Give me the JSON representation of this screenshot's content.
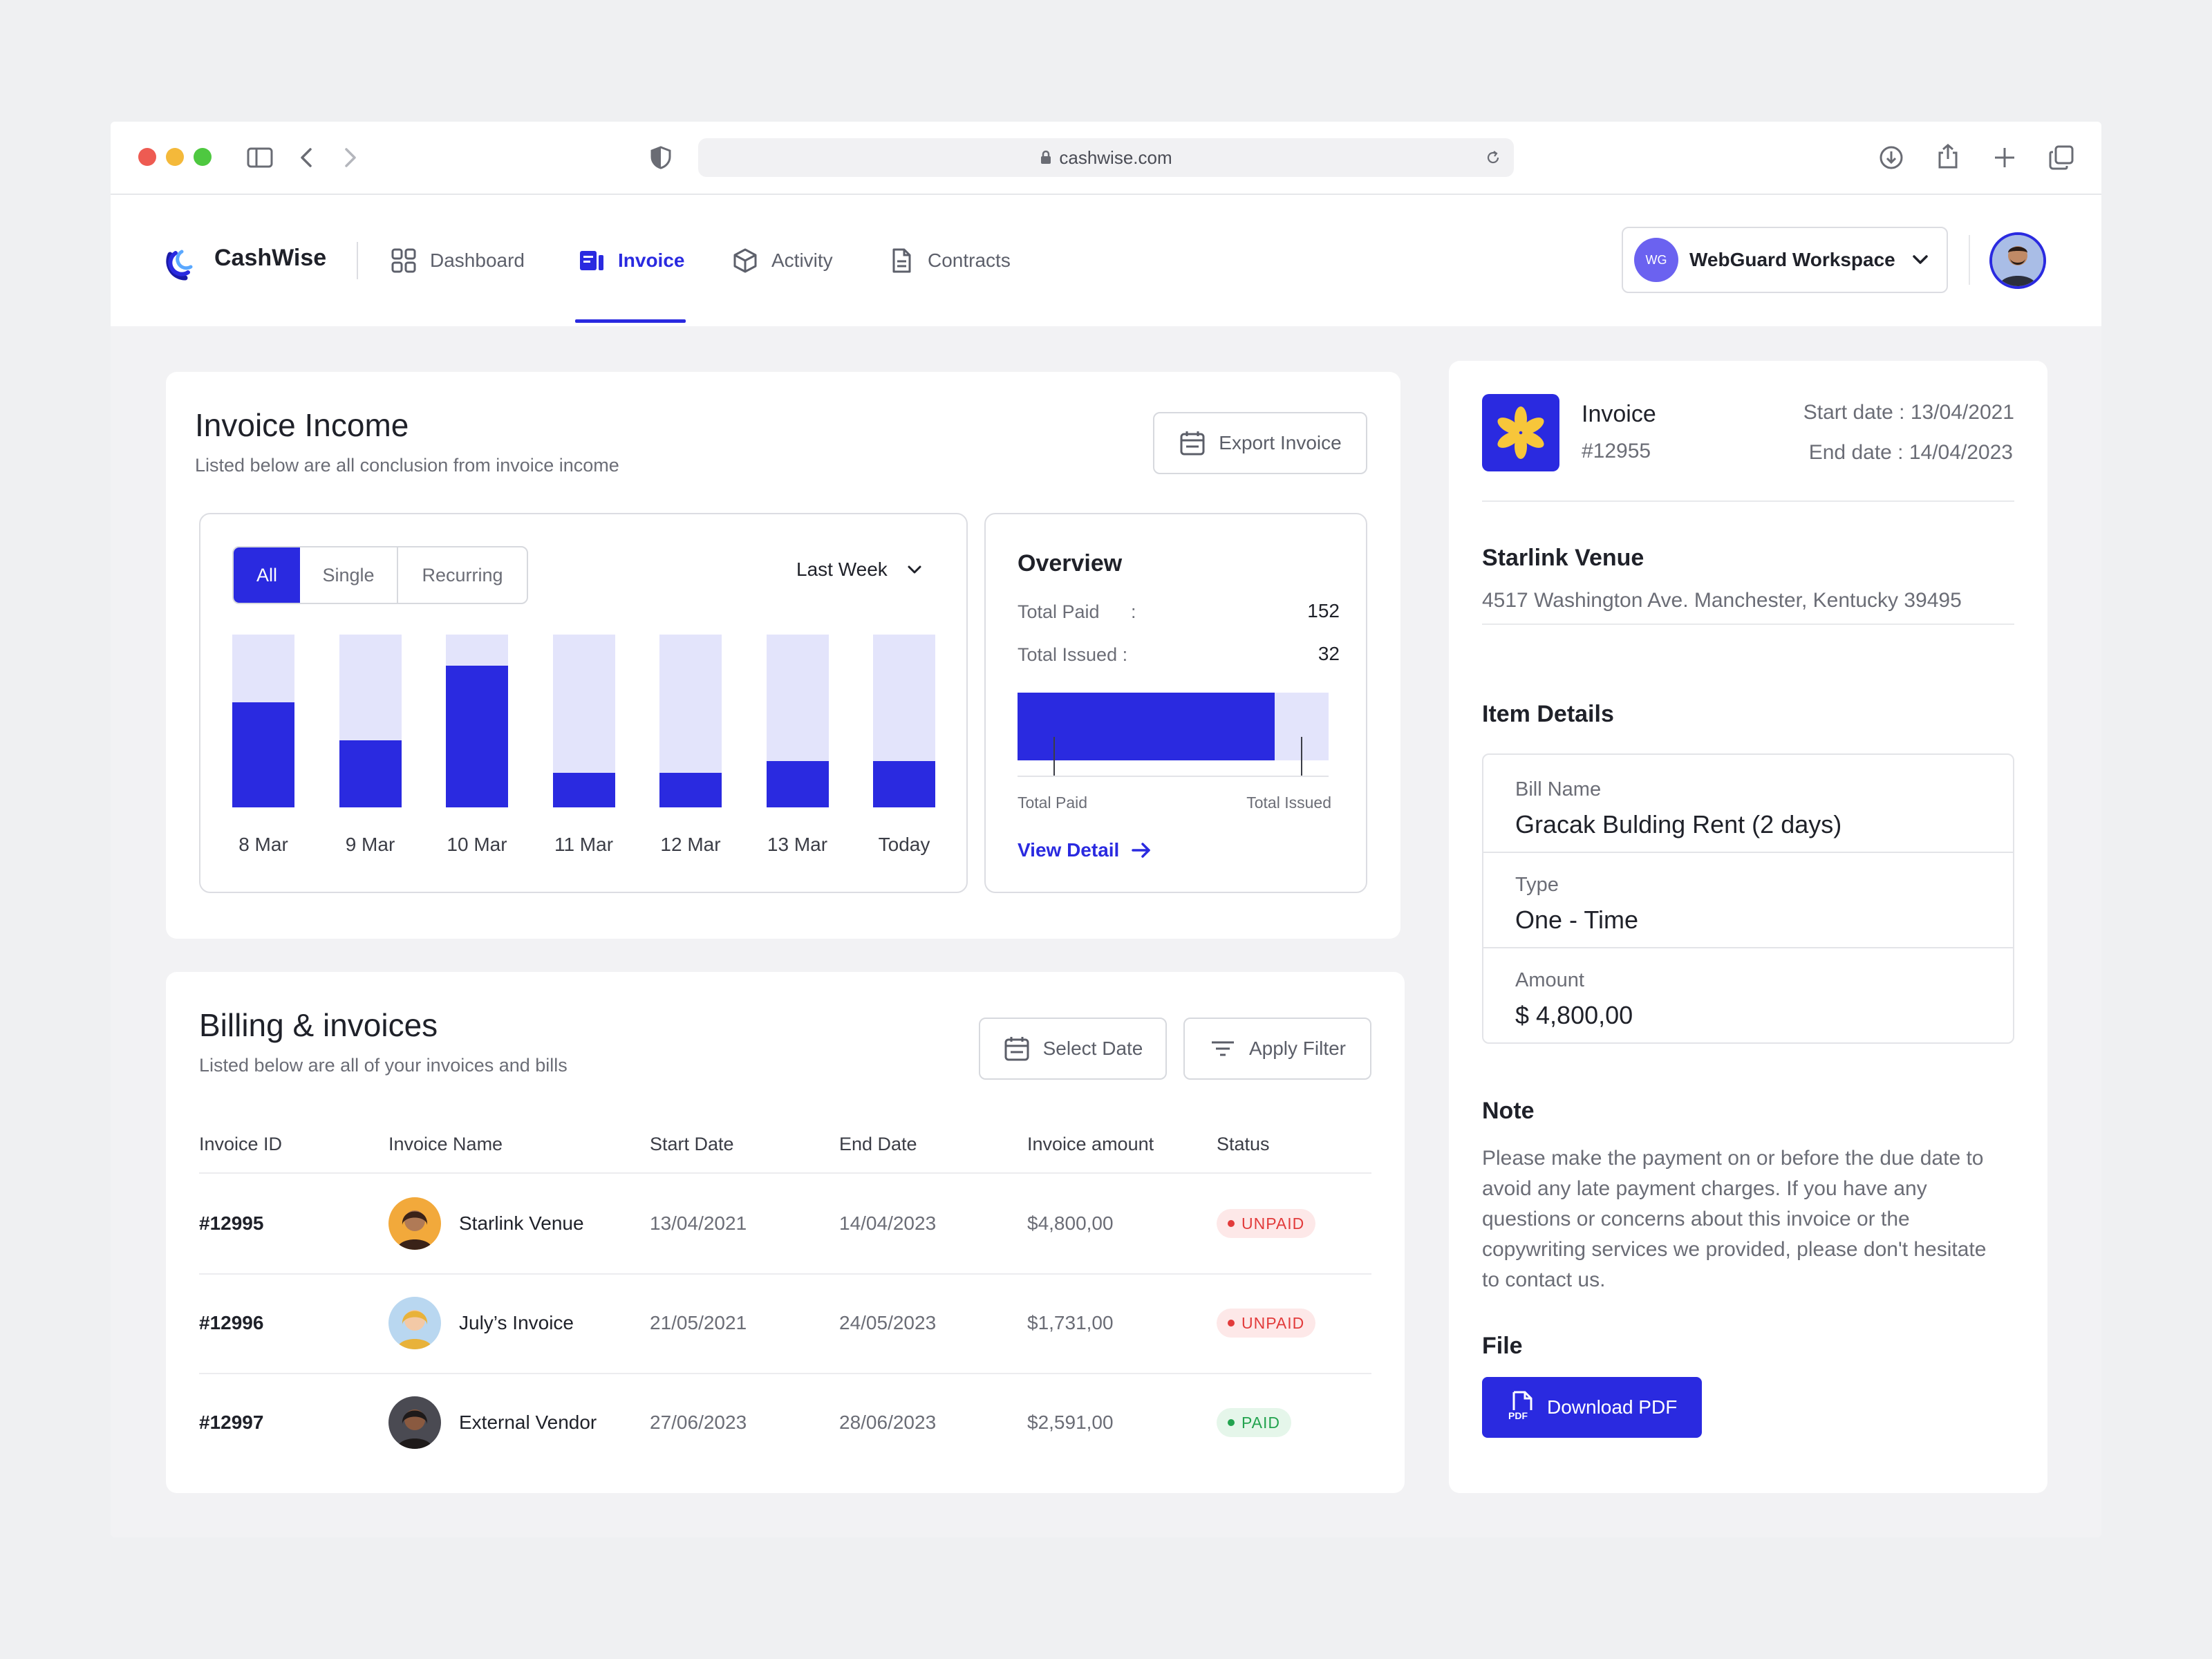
{
  "browser": {
    "url": "cashwise.com"
  },
  "app": {
    "brand": "CashWise",
    "nav": [
      {
        "label": "Dashboard",
        "icon": "grid-icon"
      },
      {
        "label": "Invoice",
        "icon": "invoice-icon",
        "active": true
      },
      {
        "label": "Activity",
        "icon": "cube-icon"
      },
      {
        "label": "Contracts",
        "icon": "document-icon"
      }
    ],
    "workspace": {
      "initials": "WG",
      "name": "WebGuard Workspace"
    }
  },
  "income": {
    "title": "Invoice Income",
    "subtitle": "Listed below are all conclusion from invoice income",
    "export_label": "Export Invoice",
    "tabs": [
      "All",
      "Single",
      "Recurring"
    ],
    "active_tab": "All",
    "period": "Last Week"
  },
  "chart_data": {
    "type": "bar",
    "categories": [
      "8 Mar",
      "9 Mar",
      "10 Mar",
      "11 Mar",
      "12 Mar",
      "13 Mar",
      "Today"
    ],
    "values": [
      61,
      39,
      82,
      20,
      20,
      27,
      27
    ],
    "ylim": [
      0,
      100
    ]
  },
  "overview": {
    "title": "Overview",
    "total_paid_label": "Total Paid",
    "total_paid_sep": ":",
    "total_paid_value": "152",
    "total_issued_label": "Total Issued :",
    "total_issued_value": "32",
    "paid_fraction": 0.826,
    "bar_left_label": "Total Paid",
    "bar_right_label": "Total Issued",
    "view_detail": "View Detail"
  },
  "billing": {
    "title": "Billing & invoices",
    "subtitle": "Listed below are all of your invoices and bills",
    "select_date": "Select Date",
    "apply_filter": "Apply Filter",
    "columns": [
      "Invoice ID",
      "Invoice Name",
      "Start Date",
      "End Date",
      "Invoice amount",
      "Status"
    ],
    "rows": [
      {
        "id": "#12995",
        "name": "Starlink Venue",
        "start": "13/04/2021",
        "end": "14/04/2023",
        "amount": "$4,800,00",
        "status": "UNPAID",
        "avatar_bg": "#f2a93b",
        "skin": "#b07a56",
        "hair": "#3a2218"
      },
      {
        "id": "#12996",
        "name": "July’s Invoice",
        "start": "21/05/2021",
        "end": "24/05/2023",
        "amount": "$1,731,00",
        "status": "UNPAID",
        "avatar_bg": "#b9d7f0",
        "skin": "#f3c9a6",
        "hair": "#e8b23a"
      },
      {
        "id": "#12997",
        "name": "External Vendor",
        "start": "27/06/2023",
        "end": "28/06/2023",
        "amount": "$2,591,00",
        "status": "PAID",
        "avatar_bg": "#4a4a52",
        "skin": "#8a5a40",
        "hair": "#1e1a1a"
      }
    ]
  },
  "detail": {
    "title": "Invoice",
    "number": "#12955",
    "start_date": "Start date : 13/04/2021",
    "end_date": "End date : 14/04/2023",
    "venue": "Starlink Venue",
    "address": "4517 Washington Ave. Manchester, Kentucky 39495",
    "item_details_title": "Item Details",
    "bill_name_label": "Bill Name",
    "bill_name": "Gracak Bulding Rent (2 days)",
    "type_label": "Type",
    "type": "One - Time",
    "amount_label": "Amount",
    "amount": "$ 4,800,00",
    "note_title": "Note",
    "note": "Please make the payment on or before the due date to avoid any late payment charges. If you have any questions or concerns about this invoice or the copywriting services we provided, please don't hesitate to contact us.",
    "file_title": "File",
    "download": "Download PDF",
    "pdf_tag": "PDF"
  },
  "colors": {
    "accent": "#2a2ae0",
    "accent_light": "#e3e4fb",
    "unpaid_bg": "#fde8e8",
    "unpaid_fg": "#e23b3b",
    "paid_bg": "#e5f6ea",
    "paid_fg": "#23a34f"
  }
}
